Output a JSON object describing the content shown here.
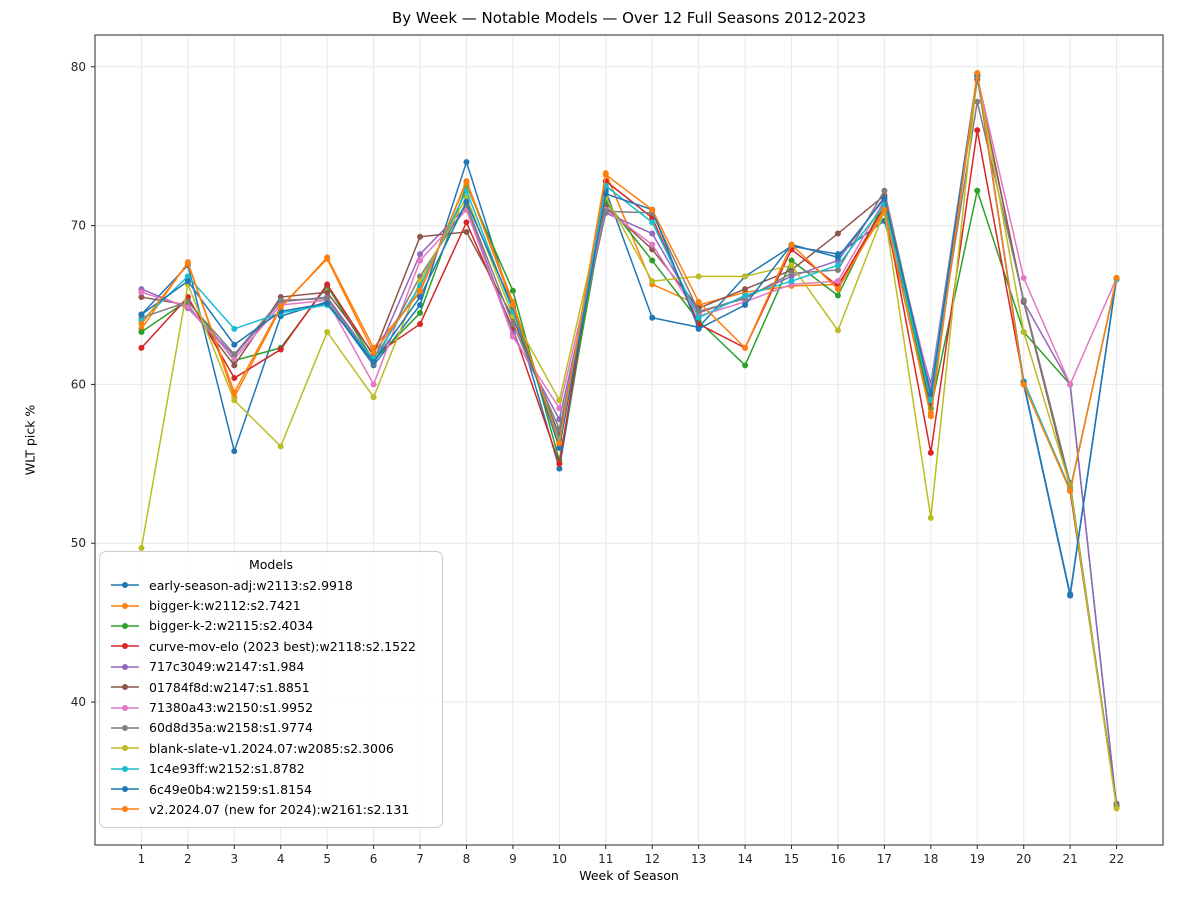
{
  "chart_data": {
    "type": "line",
    "title": "By Week — Notable Models — Over 12 Full Seasons 2012-2023",
    "xlabel": "Week of Season",
    "ylabel": "WLT pick %",
    "legend_title": "Models",
    "legend_position": "lower left",
    "grid": true,
    "xlim": [
      0,
      23
    ],
    "ylim": [
      31,
      82
    ],
    "xticks": [
      1,
      2,
      3,
      4,
      5,
      6,
      7,
      8,
      9,
      10,
      11,
      12,
      13,
      14,
      15,
      16,
      17,
      18,
      19,
      20,
      21,
      22
    ],
    "yticks": [
      40,
      50,
      60,
      70,
      80
    ],
    "x": [
      1,
      2,
      3,
      4,
      5,
      6,
      7,
      8,
      9,
      10,
      11,
      12,
      13,
      14,
      15,
      16,
      17,
      18,
      19,
      20,
      21,
      22
    ],
    "series": [
      {
        "name": "early-season-adj:w2113:s2.9918",
        "color": "#1f77b4",
        "values": [
          64.4,
          67.5,
          55.8,
          64.3,
          65.2,
          61.2,
          65.0,
          74.0,
          64.8,
          54.7,
          72.2,
          64.2,
          63.6,
          66.8,
          68.7,
          68.2,
          70.3,
          60.0,
          79.5,
          60.0,
          46.7,
          66.7
        ]
      },
      {
        "name": "bigger-k:w2112:s2.7421",
        "color": "#ff7f0e",
        "values": [
          63.5,
          67.7,
          59.2,
          64.8,
          68.0,
          62.3,
          65.8,
          72.8,
          65.2,
          56.2,
          73.3,
          66.3,
          65.0,
          65.8,
          66.2,
          66.3,
          70.8,
          58.2,
          79.6,
          60.0,
          53.3,
          66.7
        ]
      },
      {
        "name": "bigger-k-2:w2115:s2.4034",
        "color": "#2ca02c",
        "values": [
          63.3,
          65.3,
          61.5,
          62.3,
          66.2,
          61.5,
          64.5,
          72.5,
          65.9,
          55.2,
          71.5,
          67.8,
          64.0,
          61.2,
          67.8,
          65.6,
          71.5,
          58.5,
          72.2,
          63.3,
          60.0,
          33.4
        ]
      },
      {
        "name": "curve-mov-elo (2023 best):w2118:s2.1522",
        "color": "#d62728",
        "values": [
          62.3,
          65.5,
          60.4,
          62.2,
          66.3,
          61.8,
          63.8,
          70.2,
          63.5,
          55.0,
          72.8,
          70.5,
          63.8,
          62.3,
          68.5,
          66.2,
          71.2,
          55.7,
          76.0,
          60.2,
          53.3,
          33.5
        ]
      },
      {
        "name": "717c3049:w2147:s1.984",
        "color": "#9467bd",
        "values": [
          66.0,
          64.8,
          61.8,
          65.2,
          65.5,
          61.5,
          68.2,
          71.2,
          63.2,
          57.8,
          70.8,
          69.5,
          64.5,
          65.5,
          66.8,
          67.8,
          71.8,
          59.5,
          79.3,
          65.2,
          60.0,
          33.4
        ]
      },
      {
        "name": "01784f8d:w2147:s1.8851",
        "color": "#8c564b",
        "values": [
          65.5,
          65.0,
          61.2,
          65.5,
          65.8,
          61.9,
          69.3,
          69.6,
          64.2,
          56.8,
          71.2,
          68.5,
          64.8,
          66.0,
          67.2,
          69.5,
          71.9,
          58.8,
          79.2,
          65.2,
          53.5,
          33.6
        ]
      },
      {
        "name": "71380a43:w2150:s1.9952",
        "color": "#e377c2",
        "values": [
          65.8,
          64.9,
          61.6,
          65.0,
          65.3,
          60.0,
          67.8,
          71.0,
          63.0,
          58.5,
          71.0,
          68.8,
          64.3,
          65.2,
          66.3,
          66.5,
          71.6,
          59.8,
          79.4,
          66.7,
          60.0,
          66.7
        ]
      },
      {
        "name": "60d8d35a:w2158:s1.9774",
        "color": "#7f7f7f",
        "values": [
          64.2,
          65.2,
          61.9,
          65.3,
          65.4,
          61.3,
          66.8,
          71.3,
          63.8,
          57.2,
          70.9,
          70.8,
          64.6,
          65.4,
          67.0,
          67.2,
          72.2,
          59.2,
          77.8,
          65.3,
          53.8,
          33.5
        ]
      },
      {
        "name": "blank-slate-v1.2024.07:w2085:s2.3006",
        "color": "#bcbd22",
        "values": [
          49.7,
          66.3,
          59.0,
          56.1,
          63.3,
          59.2,
          66.5,
          71.8,
          64.3,
          59.0,
          71.8,
          66.5,
          66.8,
          66.8,
          67.5,
          63.4,
          70.9,
          51.6,
          79.5,
          63.3,
          53.6,
          33.3
        ]
      },
      {
        "name": "1c4e93ff:w2152:s1.8782",
        "color": "#17becf",
        "values": [
          64.0,
          66.8,
          63.5,
          64.5,
          65.0,
          61.6,
          66.2,
          72.2,
          64.6,
          56.5,
          72.5,
          70.2,
          64.2,
          65.6,
          66.5,
          67.5,
          71.3,
          59.0,
          79.4,
          60.2,
          53.4,
          66.6
        ]
      },
      {
        "name": "6c49e0b4:w2159:s1.8154",
        "color": "#1f77b4",
        "values": [
          64.4,
          66.5,
          62.5,
          64.6,
          65.1,
          61.4,
          65.5,
          71.5,
          64.9,
          56.0,
          72.0,
          71.0,
          63.5,
          65.0,
          68.8,
          68.0,
          71.7,
          59.4,
          79.5,
          60.1,
          46.8,
          66.7
        ]
      },
      {
        "name": "v2.2024.07 (new for 2024):w2161:s2.131",
        "color": "#ff7f0e",
        "values": [
          63.8,
          67.6,
          59.5,
          64.9,
          67.9,
          62.0,
          65.9,
          72.7,
          65.0,
          56.3,
          73.2,
          71.0,
          65.2,
          62.3,
          68.8,
          66.0,
          71.0,
          58.0,
          79.6,
          60.0,
          53.3,
          66.7
        ]
      }
    ],
    "style": {
      "grid_color": "#e8e8e8",
      "spine_color": "#262626",
      "tick_label_color": "#262626",
      "marker_radius": 3,
      "line_width": 1.5
    }
  }
}
